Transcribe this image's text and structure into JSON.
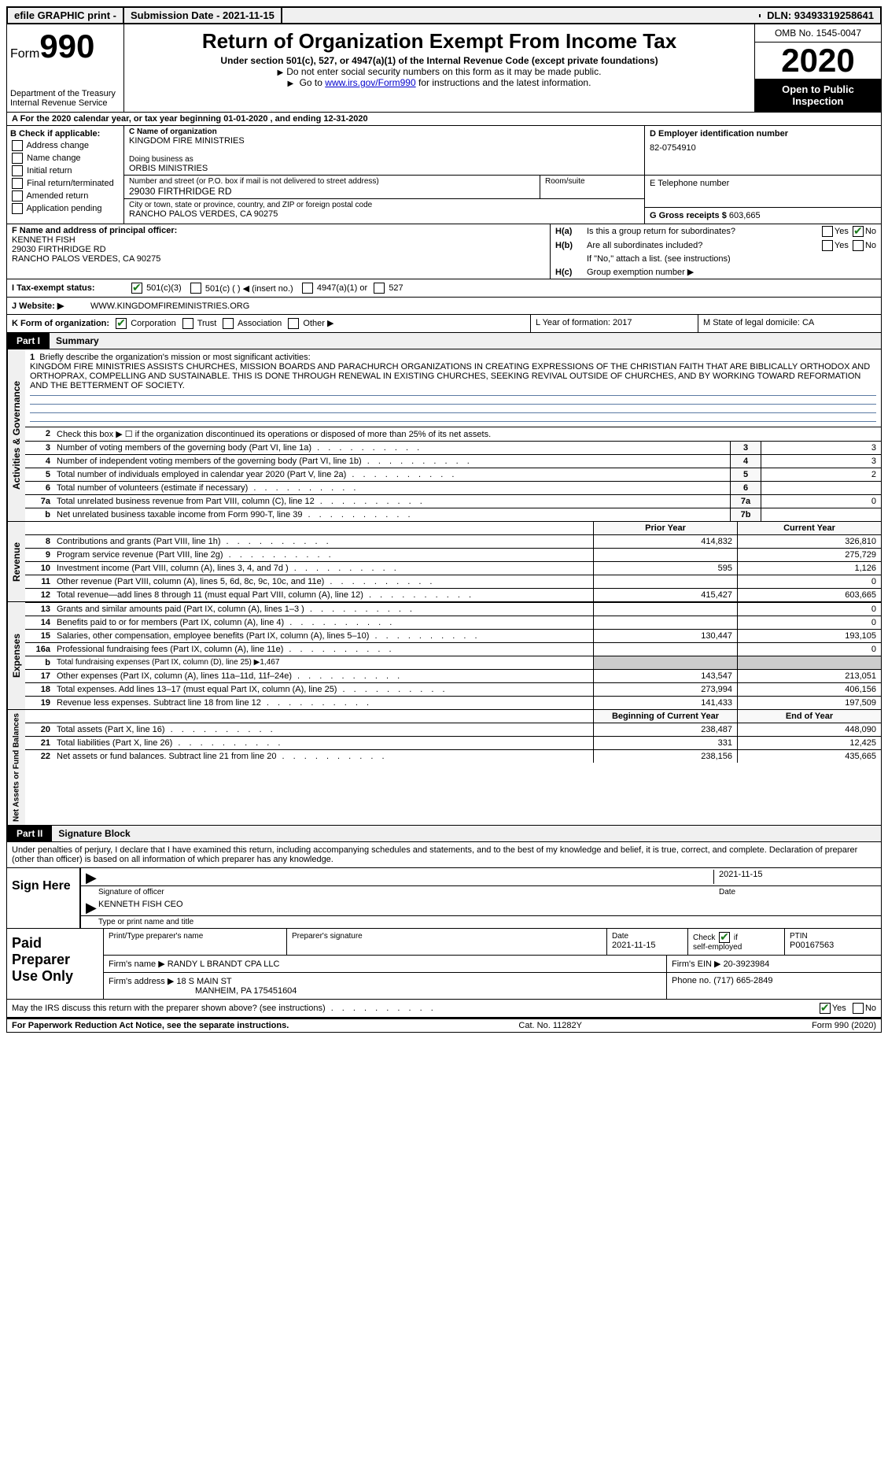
{
  "topbar": {
    "efile": "efile GRAPHIC print -",
    "submission_label": "Submission Date - 2021-11-15",
    "dln": "DLN: 93493319258641"
  },
  "header": {
    "form_prefix": "Form",
    "form_number": "990",
    "dept": "Department of the Treasury",
    "irs": "Internal Revenue Service",
    "title": "Return of Organization Exempt From Income Tax",
    "subtitle": "Under section 501(c), 527, or 4947(a)(1) of the Internal Revenue Code (except private foundations)",
    "note1": "Do not enter social security numbers on this form as it may be made public.",
    "note2_pre": "Go to ",
    "note2_link": "www.irs.gov/Form990",
    "note2_post": " for instructions and the latest information.",
    "omb": "OMB No. 1545-0047",
    "year": "2020",
    "open_public": "Open to Public Inspection"
  },
  "rowA": "A  For the 2020 calendar year, or tax year beginning 01-01-2020   , and ending 12-31-2020",
  "boxB": {
    "label": "B Check if applicable:",
    "items": [
      "Address change",
      "Name change",
      "Initial return",
      "Final return/terminated",
      "Amended return",
      "Application pending"
    ]
  },
  "boxC": {
    "c_label": "C Name of organization",
    "c_name": "KINGDOM FIRE MINISTRIES",
    "dba_label": "Doing business as",
    "dba": "ORBIS MINISTRIES",
    "street_label": "Number and street (or P.O. box if mail is not delivered to street address)",
    "street": "29030 FIRTHRIDGE RD",
    "room_label": "Room/suite",
    "city_label": "City or town, state or province, country, and ZIP or foreign postal code",
    "city": "RANCHO PALOS VERDES, CA  90275"
  },
  "boxD": {
    "label": "D Employer identification number",
    "ein": "82-0754910",
    "e_label": "E Telephone number",
    "g_label": "G Gross receipts $",
    "g_val": "603,665"
  },
  "boxF": {
    "label": "F Name and address of principal officer:",
    "name": "KENNETH FISH",
    "street": "29030 FIRTHRIDGE RD",
    "city": "RANCHO PALOS VERDES, CA  90275"
  },
  "boxH": {
    "ha_l": "H(a)",
    "ha_t": "Is this a group return for subordinates?",
    "hb_l": "H(b)",
    "hb_t": "Are all subordinates included?",
    "hb_note": "If \"No,\" attach a list. (see instructions)",
    "hc_l": "H(c)",
    "hc_t": "Group exemption number ▶",
    "yes": "Yes",
    "no": "No"
  },
  "rowI": {
    "label": "I   Tax-exempt status:",
    "o1": "501(c)(3)",
    "o2": "501(c) (  ) ◀ (insert no.)",
    "o3": "4947(a)(1) or",
    "o4": "527"
  },
  "rowJ": {
    "label": "J   Website: ▶",
    "val": "WWW.KINGDOMFIREMINISTRIES.ORG"
  },
  "rowK": {
    "label": "K Form of organization:",
    "o1": "Corporation",
    "o2": "Trust",
    "o3": "Association",
    "o4": "Other ▶",
    "L": "L Year of formation: 2017",
    "M": "M State of legal domicile: CA"
  },
  "part1": {
    "tab": "Part I",
    "title": "Summary"
  },
  "vtabs": {
    "ag": "Activities & Governance",
    "rev": "Revenue",
    "exp": "Expenses",
    "na": "Net Assets or Fund Balances"
  },
  "mission": {
    "num": "1",
    "label": "Briefly describe the organization's mission or most significant activities:",
    "text": "KINGDOM FIRE MINISTRIES ASSISTS CHURCHES, MISSION BOARDS AND PARACHURCH ORGANIZATIONS IN CREATING EXPRESSIONS OF THE CHRISTIAN FAITH THAT ARE BIBLICALLY ORTHODOX AND ORTHOPRAX, COMPELLING AND SUSTAINABLE. THIS IS DONE THROUGH RENEWAL IN EXISTING CHURCHES, SEEKING REVIVAL OUTSIDE OF CHURCHES, AND BY WORKING TOWARD REFORMATION AND THE BETTERMENT OF SOCIETY."
  },
  "lines_ag": [
    {
      "n": "2",
      "d": "Check this box ▶ ☐  if the organization discontinued its operations or disposed of more than 25% of its net assets."
    },
    {
      "n": "3",
      "d": "Number of voting members of the governing body (Part VI, line 1a)",
      "box": "3",
      "v": "3"
    },
    {
      "n": "4",
      "d": "Number of independent voting members of the governing body (Part VI, line 1b)",
      "box": "4",
      "v": "3"
    },
    {
      "n": "5",
      "d": "Total number of individuals employed in calendar year 2020 (Part V, line 2a)",
      "box": "5",
      "v": "2"
    },
    {
      "n": "6",
      "d": "Total number of volunteers (estimate if necessary)",
      "box": "6",
      "v": ""
    },
    {
      "n": "7a",
      "d": "Total unrelated business revenue from Part VIII, column (C), line 12",
      "box": "7a",
      "v": "0"
    },
    {
      "n": "b",
      "d": "Net unrelated business taxable income from Form 990-T, line 39",
      "box": "7b",
      "v": ""
    }
  ],
  "col_hdrs": {
    "prior": "Prior Year",
    "current": "Current Year",
    "boy": "Beginning of Current Year",
    "eoy": "End of Year"
  },
  "lines_rev": [
    {
      "n": "8",
      "d": "Contributions and grants (Part VIII, line 1h)",
      "p": "414,832",
      "c": "326,810"
    },
    {
      "n": "9",
      "d": "Program service revenue (Part VIII, line 2g)",
      "p": "",
      "c": "275,729"
    },
    {
      "n": "10",
      "d": "Investment income (Part VIII, column (A), lines 3, 4, and 7d )",
      "p": "595",
      "c": "1,126"
    },
    {
      "n": "11",
      "d": "Other revenue (Part VIII, column (A), lines 5, 6d, 8c, 9c, 10c, and 11e)",
      "p": "",
      "c": "0"
    },
    {
      "n": "12",
      "d": "Total revenue—add lines 8 through 11 (must equal Part VIII, column (A), line 12)",
      "p": "415,427",
      "c": "603,665"
    }
  ],
  "lines_exp": [
    {
      "n": "13",
      "d": "Grants and similar amounts paid (Part IX, column (A), lines 1–3 )",
      "p": "",
      "c": "0"
    },
    {
      "n": "14",
      "d": "Benefits paid to or for members (Part IX, column (A), line 4)",
      "p": "",
      "c": "0"
    },
    {
      "n": "15",
      "d": "Salaries, other compensation, employee benefits (Part IX, column (A), lines 5–10)",
      "p": "130,447",
      "c": "193,105"
    },
    {
      "n": "16a",
      "d": "Professional fundraising fees (Part IX, column (A), line 11e)",
      "p": "",
      "c": "0"
    },
    {
      "n": "b",
      "d": "Total fundraising expenses (Part IX, column (D), line 25) ▶1,467",
      "nob": true
    },
    {
      "n": "17",
      "d": "Other expenses (Part IX, column (A), lines 11a–11d, 11f–24e)",
      "p": "143,547",
      "c": "213,051"
    },
    {
      "n": "18",
      "d": "Total expenses. Add lines 13–17 (must equal Part IX, column (A), line 25)",
      "p": "273,994",
      "c": "406,156"
    },
    {
      "n": "19",
      "d": "Revenue less expenses. Subtract line 18 from line 12",
      "p": "141,433",
      "c": "197,509"
    }
  ],
  "lines_na": [
    {
      "n": "20",
      "d": "Total assets (Part X, line 16)",
      "p": "238,487",
      "c": "448,090"
    },
    {
      "n": "21",
      "d": "Total liabilities (Part X, line 26)",
      "p": "331",
      "c": "12,425"
    },
    {
      "n": "22",
      "d": "Net assets or fund balances. Subtract line 21 from line 20",
      "p": "238,156",
      "c": "435,665"
    }
  ],
  "part2": {
    "tab": "Part II",
    "title": "Signature Block"
  },
  "sig": {
    "decl": "Under penalties of perjury, I declare that I have examined this return, including accompanying schedules and statements, and to the best of my knowledge and belief, it is true, correct, and complete. Declaration of preparer (other than officer) is based on all information of which preparer has any knowledge.",
    "sign_here": "Sign Here",
    "sig_of": "Signature of officer",
    "date": "Date",
    "date_val": "2021-11-15",
    "name_title": "KENNETH FISH  CEO",
    "type_or_print": "Type or print name and title"
  },
  "paid": {
    "label": "Paid Preparer Use Only",
    "h1": "Print/Type preparer's name",
    "h2": "Preparer's signature",
    "h3": "Date",
    "h3v": "2021-11-15",
    "h4": "Check ☑ if self-employed",
    "h5": "PTIN",
    "h5v": "P00167563",
    "firm_name_l": "Firm's name   ▶",
    "firm_name": "RANDY L BRANDT CPA LLC",
    "firm_ein_l": "Firm's EIN ▶",
    "firm_ein": "20-3923984",
    "firm_addr_l": "Firm's address ▶",
    "firm_addr1": "18 S MAIN ST",
    "firm_addr2": "MANHEIM, PA  175451604",
    "phone_l": "Phone no.",
    "phone": "(717) 665-2849"
  },
  "discuss": {
    "t": "May the IRS discuss this return with the preparer shown above? (see instructions)",
    "yes": "Yes",
    "no": "No"
  },
  "footer": {
    "f1": "For Paperwork Reduction Act Notice, see the separate instructions.",
    "f2": "Cat. No. 11282Y",
    "f3": "Form 990 (2020)"
  }
}
